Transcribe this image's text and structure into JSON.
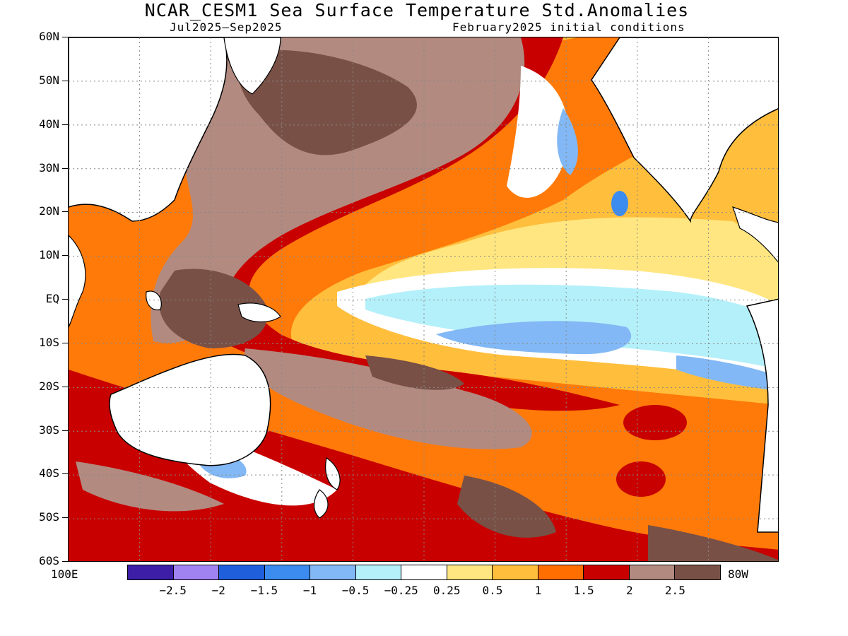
{
  "title": "NCAR_CESM1 Sea Surface Temperature Std.Anomalies",
  "subtitle_left": "Jul2025–Sep2025",
  "subtitle_right": "February2025 initial conditions",
  "map": {
    "lat_labels": [
      "60N",
      "50N",
      "40N",
      "30N",
      "20N",
      "10N",
      "EQ",
      "10S",
      "20S",
      "30S",
      "40S",
      "50S",
      "60S"
    ],
    "lon_left_label": "100E",
    "lon_right_label": "80W",
    "grid": "dotted"
  },
  "colorbar": {
    "labels": [
      "−2.5",
      "−2",
      "−1.5",
      "−1",
      "−0.5",
      "−0.25",
      "0.25",
      "0.5",
      "1",
      "1.5",
      "2",
      "2.5"
    ],
    "colors": [
      "#3c1fa6",
      "#a082f0",
      "#1f5fdc",
      "#3c8cf0",
      "#82b8f5",
      "#b4f0fa",
      "#ffffff",
      "#ffe680",
      "#ffbe3c",
      "#ff6e00",
      "#c80000",
      "#b28a80",
      "#785046"
    ]
  }
}
